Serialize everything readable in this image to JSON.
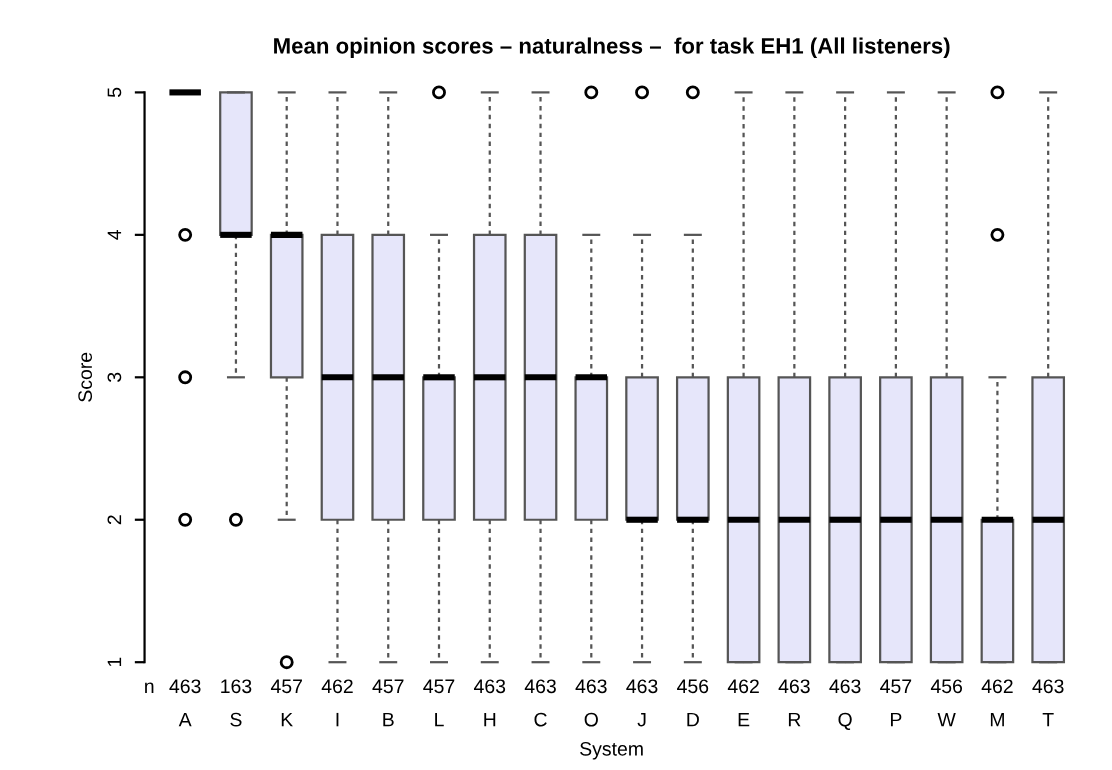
{
  "chart_data": {
    "type": "box",
    "title": "Mean opinion scores – naturalness –  for task EH1 (All listeners)",
    "xlabel": "System",
    "ylabel": "Score",
    "categories": [
      "A",
      "S",
      "K",
      "I",
      "B",
      "L",
      "H",
      "C",
      "O",
      "J",
      "D",
      "E",
      "R",
      "Q",
      "P",
      "W",
      "M",
      "T"
    ],
    "color": "#e6e6fa",
    "boxes": [
      {
        "low": 5,
        "q1": 5,
        "median": 5,
        "q3": 5,
        "high": 5,
        "outliers": [
          4,
          3,
          2
        ]
      },
      {
        "low": 3,
        "q1": 4,
        "median": 4,
        "q3": 5,
        "high": 5,
        "outliers": [
          2
        ]
      },
      {
        "low": 2,
        "q1": 3,
        "median": 4,
        "q3": 4,
        "high": 5,
        "outliers": [
          1
        ]
      },
      {
        "low": 1,
        "q1": 2,
        "median": 3,
        "q3": 4,
        "high": 5
      },
      {
        "low": 1,
        "q1": 2,
        "median": 3,
        "q3": 4,
        "high": 5
      },
      {
        "low": 1,
        "q1": 2,
        "median": 3,
        "q3": 3,
        "high": 4,
        "outliers": [
          5
        ]
      },
      {
        "low": 1,
        "q1": 2,
        "median": 3,
        "q3": 4,
        "high": 5
      },
      {
        "low": 1,
        "q1": 2,
        "median": 3,
        "q3": 4,
        "high": 5
      },
      {
        "low": 1,
        "q1": 2,
        "median": 3,
        "q3": 3,
        "high": 4,
        "outliers": [
          5
        ]
      },
      {
        "low": 1,
        "q1": 2,
        "median": 2,
        "q3": 3,
        "high": 4,
        "outliers": [
          5
        ]
      },
      {
        "low": 1,
        "q1": 2,
        "median": 2,
        "q3": 3,
        "high": 4,
        "outliers": [
          5
        ]
      },
      {
        "low": 1,
        "q1": 1,
        "median": 2,
        "q3": 3,
        "high": 5
      },
      {
        "low": 1,
        "q1": 1,
        "median": 2,
        "q3": 3,
        "high": 5
      },
      {
        "low": 1,
        "q1": 1,
        "median": 2,
        "q3": 3,
        "high": 5
      },
      {
        "low": 1,
        "q1": 1,
        "median": 2,
        "q3": 3,
        "high": 5
      },
      {
        "low": 1,
        "q1": 1,
        "median": 2,
        "q3": 3,
        "high": 5
      },
      {
        "low": 1,
        "q1": 1,
        "median": 2,
        "q3": 2,
        "high": 3,
        "outliers": [
          4,
          5
        ]
      },
      {
        "low": 1,
        "q1": 1,
        "median": 2,
        "q3": 3,
        "high": 5
      }
    ],
    "ylim": [
      1,
      5
    ],
    "yticks": [
      1,
      2,
      3,
      4,
      5
    ],
    "annotations": [
      "n",
      "463",
      "163",
      "457",
      "462",
      "457",
      "457",
      "463",
      "463",
      "463",
      "463",
      "456",
      "462",
      "463",
      "463",
      "457",
      "456",
      "462",
      "463"
    ]
  }
}
